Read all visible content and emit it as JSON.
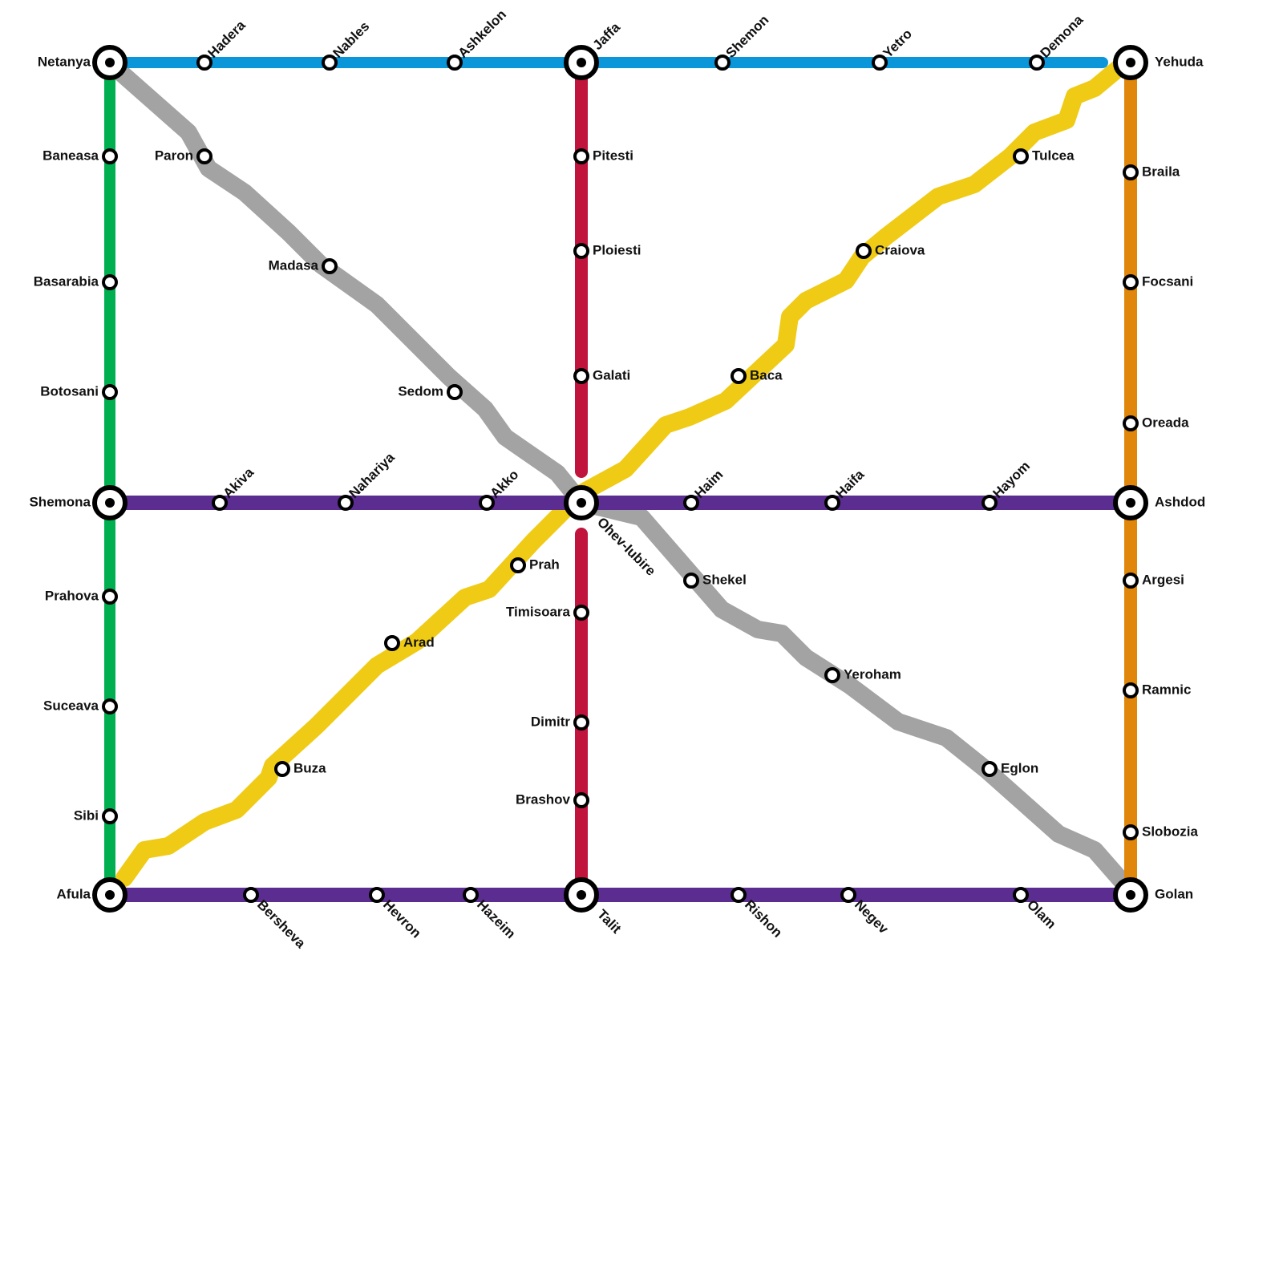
{
  "stations": [
    "Netanya",
    "Hadera",
    "Nables",
    "Ashkelon",
    "Jaffa",
    "Shemon",
    "Yetro",
    "Demona",
    "Yehuda",
    "Baneasa",
    "Basarabia",
    "Botosani",
    "Shemona",
    "Prahova",
    "Suceava",
    "Sibi",
    "Afula",
    "Akiva",
    "Nahariya",
    "Akko",
    "Ohev-Iubire",
    "Haim",
    "Haifa",
    "Hayom",
    "Ashdod",
    "Bersheva",
    "Hevron",
    "Hazeim",
    "Talit",
    "Rishon",
    "Negev",
    "Olam",
    "Golan",
    "Pitesti",
    "Ploiesti",
    "Galati",
    "Timisoara",
    "Dimitr",
    "Brashov",
    "Braila",
    "Focsani",
    "Oreada",
    "Argesi",
    "Ramnic",
    "Slobozia",
    "Paron",
    "Madasa",
    "Sedom",
    "Shekel",
    "Yeroham",
    "Eglon",
    "Buza",
    "Arad",
    "Prah",
    "Baca",
    "Craiova",
    "Tulcea"
  ]
}
